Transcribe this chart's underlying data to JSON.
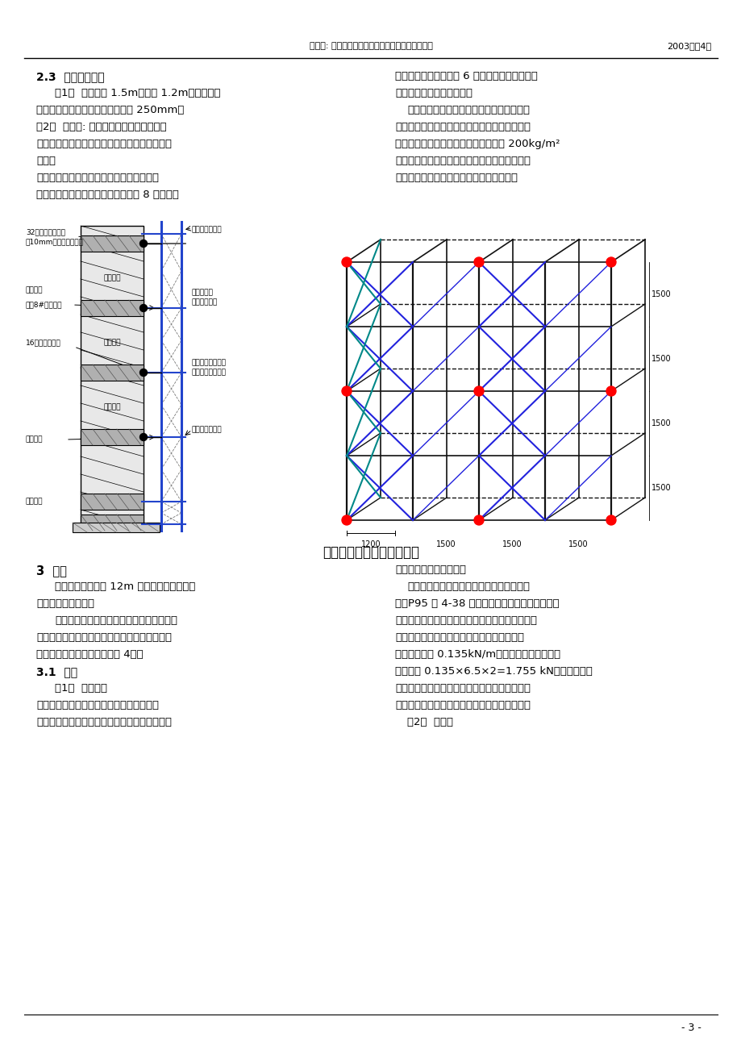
{
  "header_center": "钟世原: 保利大厦外装修改造工程外脚手架设计方案",
  "header_right": "2003年第4期",
  "footer_right": "- 3 -",
  "section_23_title": "2.3  架体搭设参数",
  "section_23_right_col1": "刀撑，每剪刀撑道跨越 6 根立杆设置。所有立杆",
  "section_23_right_col2": "必须采用搭接，不得对接。",
  "para1_left1": "（1）  立杆柱距 1.5m、排距 1.2m、步距按层",
  "para1_left2": "高均分为两步，内立杆距建筑外皮 250mm。",
  "para1_right1": "外架使用时必须进行严格控制，确保每段架",
  "para1_right2": "体内只能有一个作业层，同时作业层内不得集中",
  "para1_right3": "放置荷载，确保作业层施工荷载不大于 200kg/m²",
  "para1_right4": "（按《建筑施工脚手架实用手册》要求的装修用",
  "para1_right5": "荷载取值），同时不得使用小车进行运输。",
  "para2_left1": "（2）  连墙件: 除每根立杆位置处上下各有",
  "para2_left2": "一连结点外，再在架体中部每隔一跨设置一刚性",
  "para2_left3": "连墙。",
  "para3_left1": "为使架体能有较好的整体性，每隔六跨及转",
  "para3_left2": "角处加设横向支撑（之字形），间隔 8 跨布置剪",
  "diagram_title": "剪力墙处脚手架搭设示意图",
  "section3_title": "3  计算",
  "section3_right0": "杆件及连接它们的扣件。",
  "section3_left1": "三层以下的架体仅 12m 左右，按构造搭设即",
  "section3_left2": "可，不用进行计算。",
  "section3_left3": "三层以上架体：由于各段（每两层一段）之",
  "section3_left4": "间竖向断开（不传力），故计算只按段考虑，下",
  "section3_left5": "面就一跨架体进行分析（见图 4）：",
  "section3_right1": "架体结构自重，按《建筑施工脚手架实用手",
  "section3_right2": "册》P95 表 4-38 或《建筑施工扣件式钢管脚手架",
  "section3_right3": "安全技术规范》（以下简称《扣件规范》），可知",
  "section3_right4": "一个柱距范围的每米高脚手架结构自重产生的",
  "section3_right5": "轴力标准值为 0.135kN/m，因此一跨架体的结构",
  "section3_right6": "自重应为 0.135×6.5×2=1.755 kN（按实际材料",
  "section3_right7": "的用量计算更小，因为《建筑施工脚手架实用手",
  "section3_right8": "册》表中考虑的是各种支撑均全部加上的情况）",
  "section31_title": "3.1  荷载",
  "section311_left1": "（1）  永久荷载",
  "section311_left2": "主要是脚手架的结构自重，它包括组成脚手",
  "section311_left3": "架结构的主要构件：立杆、纵横向水平杆、支撑",
  "section31_right1": "（2）  活荷载"
}
